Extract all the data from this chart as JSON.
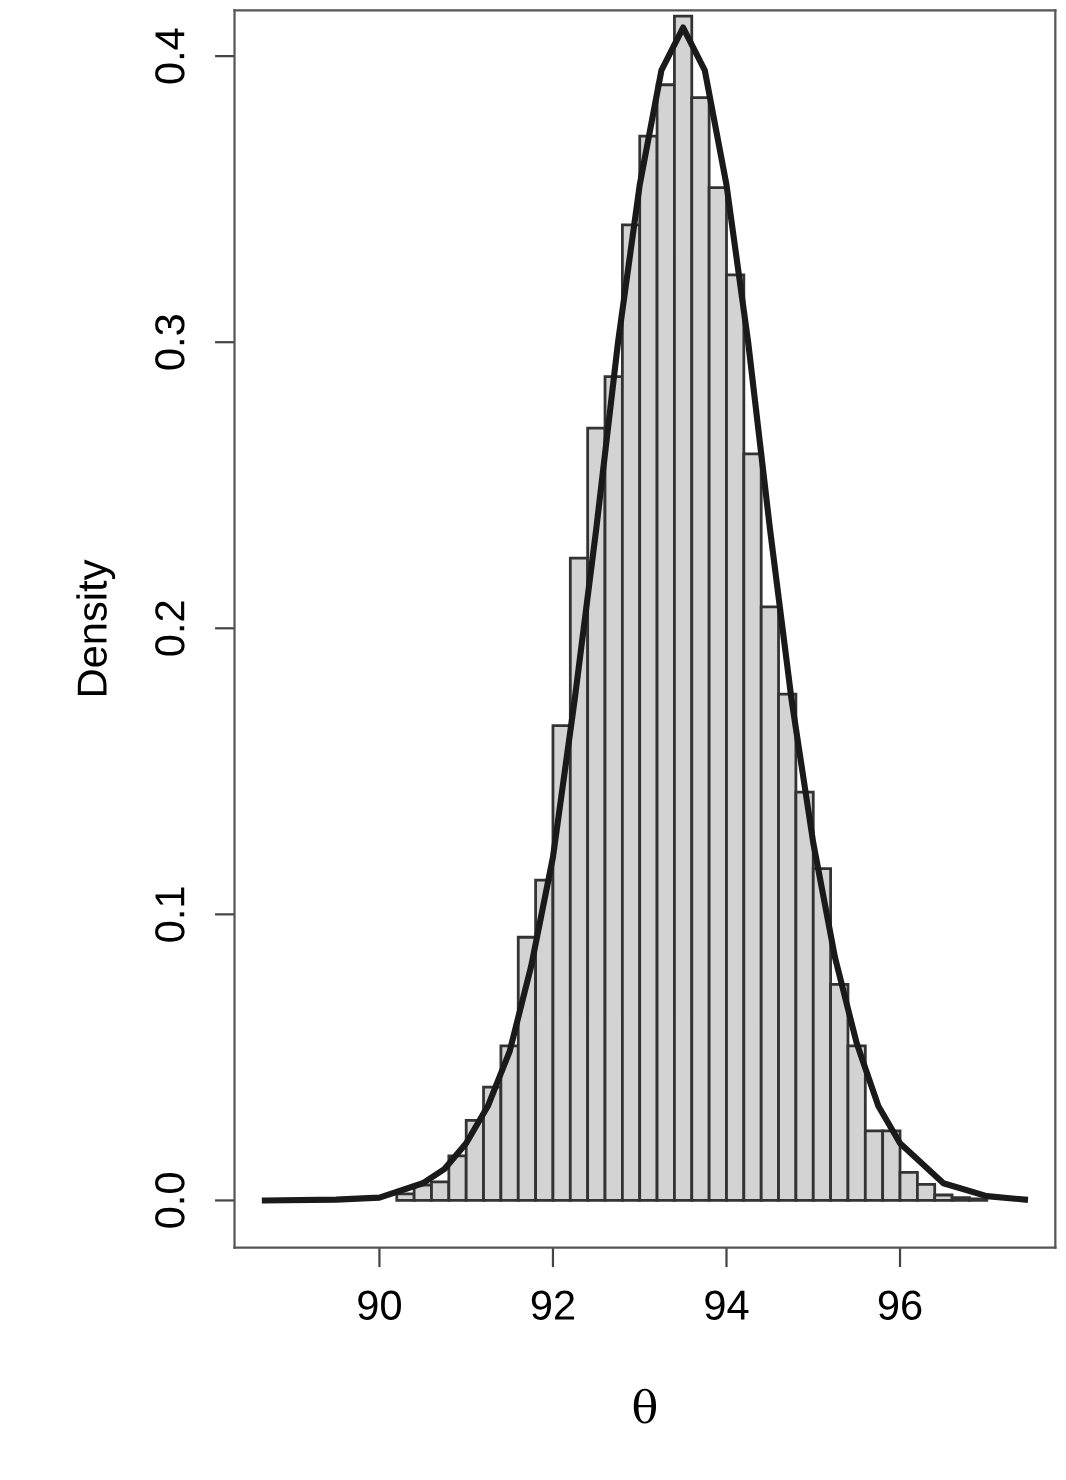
{
  "chart_data": {
    "type": "histogram",
    "xlabel": "θ",
    "ylabel": "Density",
    "bins": [
      89.8,
      90.0,
      90.2,
      90.4,
      90.6,
      90.8,
      91.0,
      91.2,
      91.4,
      91.6,
      91.8,
      92.0,
      92.2,
      92.4,
      92.6,
      92.8,
      93.0,
      93.2,
      93.4,
      93.6,
      93.8,
      94.0,
      94.2,
      94.4,
      94.6,
      94.8,
      95.0,
      95.2,
      95.4,
      95.6,
      95.8,
      96.0,
      96.2,
      96.4,
      96.6,
      96.8,
      97.0
    ],
    "values": [
      null,
      null,
      0.0023,
      0.0054,
      0.0065,
      0.0156,
      0.028,
      0.0396,
      0.054,
      0.092,
      0.112,
      0.166,
      0.2245,
      0.27,
      0.288,
      0.341,
      0.372,
      0.39,
      0.414,
      0.3855,
      0.354,
      0.3235,
      0.261,
      0.2075,
      0.177,
      0.1427,
      0.116,
      0.0755,
      0.054,
      0.0243,
      0.0243,
      0.0098,
      0.0056,
      0.0019,
      0.001,
      0.0005
    ],
    "color": "#d3d3d3",
    "series": [
      {
        "type": "line",
        "color": "#1a1a1a",
        "x": [
          88.68,
          89.5,
          90.0,
          90.5,
          90.75,
          91.0,
          91.25,
          91.5,
          91.75,
          92.0,
          92.25,
          92.5,
          92.75,
          93.0,
          93.25,
          93.5,
          93.75,
          94.0,
          94.25,
          94.5,
          94.75,
          95.0,
          95.25,
          95.5,
          95.75,
          96.0,
          96.5,
          97.0,
          97.44
        ],
        "values": [
          0.0,
          0.0003,
          0.001,
          0.006,
          0.011,
          0.02,
          0.033,
          0.052,
          0.082,
          0.12,
          0.175,
          0.235,
          0.3,
          0.355,
          0.395,
          0.41,
          0.395,
          0.355,
          0.3,
          0.235,
          0.175,
          0.125,
          0.085,
          0.055,
          0.033,
          0.02,
          0.006,
          0.0015,
          0.0003
        ]
      }
    ],
    "xlim": [
      88.33,
      97.79
    ],
    "ylim": [
      -0.0165,
      0.416
    ],
    "xticks": [
      90,
      92,
      94,
      96
    ],
    "yticks": [
      {
        "value": 0.0,
        "label": "0.0"
      },
      {
        "value": 0.1,
        "label": "0.1"
      },
      {
        "value": 0.2,
        "label": "0.2"
      },
      {
        "value": 0.3,
        "label": "0.3"
      },
      {
        "value": 0.4,
        "label": "0.4"
      }
    ],
    "grid": false,
    "legend": false
  }
}
